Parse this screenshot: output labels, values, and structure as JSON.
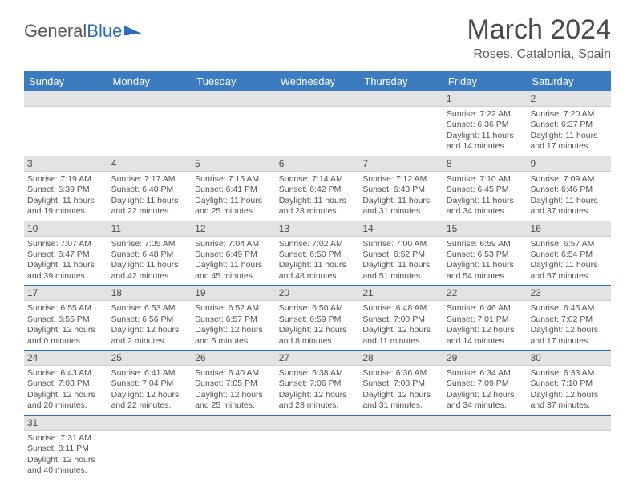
{
  "branding": {
    "part1": "General",
    "part2": "Blue"
  },
  "title": "March 2024",
  "location": "Roses, Catalonia, Spain",
  "colors": {
    "header_bg": "#3b7bbf",
    "header_fg": "#ffffff",
    "daynum_bg": "#e3e3e3",
    "divider": "#2a6db8",
    "text": "#4a4a4a"
  },
  "day_headers": [
    "Sunday",
    "Monday",
    "Tuesday",
    "Wednesday",
    "Thursday",
    "Friday",
    "Saturday"
  ],
  "weeks": [
    {
      "nums": [
        "",
        "",
        "",
        "",
        "",
        "1",
        "2"
      ],
      "cells": [
        {
          "sunrise": "",
          "sunset": "",
          "day1": "",
          "day2": ""
        },
        {
          "sunrise": "",
          "sunset": "",
          "day1": "",
          "day2": ""
        },
        {
          "sunrise": "",
          "sunset": "",
          "day1": "",
          "day2": ""
        },
        {
          "sunrise": "",
          "sunset": "",
          "day1": "",
          "day2": ""
        },
        {
          "sunrise": "",
          "sunset": "",
          "day1": "",
          "day2": ""
        },
        {
          "sunrise": "Sunrise: 7:22 AM",
          "sunset": "Sunset: 6:36 PM",
          "day1": "Daylight: 11 hours",
          "day2": "and 14 minutes."
        },
        {
          "sunrise": "Sunrise: 7:20 AM",
          "sunset": "Sunset: 6:37 PM",
          "day1": "Daylight: 11 hours",
          "day2": "and 17 minutes."
        }
      ]
    },
    {
      "nums": [
        "3",
        "4",
        "5",
        "6",
        "7",
        "8",
        "9"
      ],
      "cells": [
        {
          "sunrise": "Sunrise: 7:19 AM",
          "sunset": "Sunset: 6:39 PM",
          "day1": "Daylight: 11 hours",
          "day2": "and 19 minutes."
        },
        {
          "sunrise": "Sunrise: 7:17 AM",
          "sunset": "Sunset: 6:40 PM",
          "day1": "Daylight: 11 hours",
          "day2": "and 22 minutes."
        },
        {
          "sunrise": "Sunrise: 7:15 AM",
          "sunset": "Sunset: 6:41 PM",
          "day1": "Daylight: 11 hours",
          "day2": "and 25 minutes."
        },
        {
          "sunrise": "Sunrise: 7:14 AM",
          "sunset": "Sunset: 6:42 PM",
          "day1": "Daylight: 11 hours",
          "day2": "and 28 minutes."
        },
        {
          "sunrise": "Sunrise: 7:12 AM",
          "sunset": "Sunset: 6:43 PM",
          "day1": "Daylight: 11 hours",
          "day2": "and 31 minutes."
        },
        {
          "sunrise": "Sunrise: 7:10 AM",
          "sunset": "Sunset: 6:45 PM",
          "day1": "Daylight: 11 hours",
          "day2": "and 34 minutes."
        },
        {
          "sunrise": "Sunrise: 7:09 AM",
          "sunset": "Sunset: 6:46 PM",
          "day1": "Daylight: 11 hours",
          "day2": "and 37 minutes."
        }
      ]
    },
    {
      "nums": [
        "10",
        "11",
        "12",
        "13",
        "14",
        "15",
        "16"
      ],
      "cells": [
        {
          "sunrise": "Sunrise: 7:07 AM",
          "sunset": "Sunset: 6:47 PM",
          "day1": "Daylight: 11 hours",
          "day2": "and 39 minutes."
        },
        {
          "sunrise": "Sunrise: 7:05 AM",
          "sunset": "Sunset: 6:48 PM",
          "day1": "Daylight: 11 hours",
          "day2": "and 42 minutes."
        },
        {
          "sunrise": "Sunrise: 7:04 AM",
          "sunset": "Sunset: 6:49 PM",
          "day1": "Daylight: 11 hours",
          "day2": "and 45 minutes."
        },
        {
          "sunrise": "Sunrise: 7:02 AM",
          "sunset": "Sunset: 6:50 PM",
          "day1": "Daylight: 11 hours",
          "day2": "and 48 minutes."
        },
        {
          "sunrise": "Sunrise: 7:00 AM",
          "sunset": "Sunset: 6:52 PM",
          "day1": "Daylight: 11 hours",
          "day2": "and 51 minutes."
        },
        {
          "sunrise": "Sunrise: 6:59 AM",
          "sunset": "Sunset: 6:53 PM",
          "day1": "Daylight: 11 hours",
          "day2": "and 54 minutes."
        },
        {
          "sunrise": "Sunrise: 6:57 AM",
          "sunset": "Sunset: 6:54 PM",
          "day1": "Daylight: 11 hours",
          "day2": "and 57 minutes."
        }
      ]
    },
    {
      "nums": [
        "17",
        "18",
        "19",
        "20",
        "21",
        "22",
        "23"
      ],
      "cells": [
        {
          "sunrise": "Sunrise: 6:55 AM",
          "sunset": "Sunset: 6:55 PM",
          "day1": "Daylight: 12 hours",
          "day2": "and 0 minutes."
        },
        {
          "sunrise": "Sunrise: 6:53 AM",
          "sunset": "Sunset: 6:56 PM",
          "day1": "Daylight: 12 hours",
          "day2": "and 2 minutes."
        },
        {
          "sunrise": "Sunrise: 6:52 AM",
          "sunset": "Sunset: 6:57 PM",
          "day1": "Daylight: 12 hours",
          "day2": "and 5 minutes."
        },
        {
          "sunrise": "Sunrise: 6:50 AM",
          "sunset": "Sunset: 6:59 PM",
          "day1": "Daylight: 12 hours",
          "day2": "and 8 minutes."
        },
        {
          "sunrise": "Sunrise: 6:48 AM",
          "sunset": "Sunset: 7:00 PM",
          "day1": "Daylight: 12 hours",
          "day2": "and 11 minutes."
        },
        {
          "sunrise": "Sunrise: 6:46 AM",
          "sunset": "Sunset: 7:01 PM",
          "day1": "Daylight: 12 hours",
          "day2": "and 14 minutes."
        },
        {
          "sunrise": "Sunrise: 6:45 AM",
          "sunset": "Sunset: 7:02 PM",
          "day1": "Daylight: 12 hours",
          "day2": "and 17 minutes."
        }
      ]
    },
    {
      "nums": [
        "24",
        "25",
        "26",
        "27",
        "28",
        "29",
        "30"
      ],
      "cells": [
        {
          "sunrise": "Sunrise: 6:43 AM",
          "sunset": "Sunset: 7:03 PM",
          "day1": "Daylight: 12 hours",
          "day2": "and 20 minutes."
        },
        {
          "sunrise": "Sunrise: 6:41 AM",
          "sunset": "Sunset: 7:04 PM",
          "day1": "Daylight: 12 hours",
          "day2": "and 22 minutes."
        },
        {
          "sunrise": "Sunrise: 6:40 AM",
          "sunset": "Sunset: 7:05 PM",
          "day1": "Daylight: 12 hours",
          "day2": "and 25 minutes."
        },
        {
          "sunrise": "Sunrise: 6:38 AM",
          "sunset": "Sunset: 7:06 PM",
          "day1": "Daylight: 12 hours",
          "day2": "and 28 minutes."
        },
        {
          "sunrise": "Sunrise: 6:36 AM",
          "sunset": "Sunset: 7:08 PM",
          "day1": "Daylight: 12 hours",
          "day2": "and 31 minutes."
        },
        {
          "sunrise": "Sunrise: 6:34 AM",
          "sunset": "Sunset: 7:09 PM",
          "day1": "Daylight: 12 hours",
          "day2": "and 34 minutes."
        },
        {
          "sunrise": "Sunrise: 6:33 AM",
          "sunset": "Sunset: 7:10 PM",
          "day1": "Daylight: 12 hours",
          "day2": "and 37 minutes."
        }
      ]
    },
    {
      "nums": [
        "31",
        "",
        "",
        "",
        "",
        "",
        ""
      ],
      "cells": [
        {
          "sunrise": "Sunrise: 7:31 AM",
          "sunset": "Sunset: 8:11 PM",
          "day1": "Daylight: 12 hours",
          "day2": "and 40 minutes."
        },
        {
          "sunrise": "",
          "sunset": "",
          "day1": "",
          "day2": ""
        },
        {
          "sunrise": "",
          "sunset": "",
          "day1": "",
          "day2": ""
        },
        {
          "sunrise": "",
          "sunset": "",
          "day1": "",
          "day2": ""
        },
        {
          "sunrise": "",
          "sunset": "",
          "day1": "",
          "day2": ""
        },
        {
          "sunrise": "",
          "sunset": "",
          "day1": "",
          "day2": ""
        },
        {
          "sunrise": "",
          "sunset": "",
          "day1": "",
          "day2": ""
        }
      ]
    }
  ]
}
